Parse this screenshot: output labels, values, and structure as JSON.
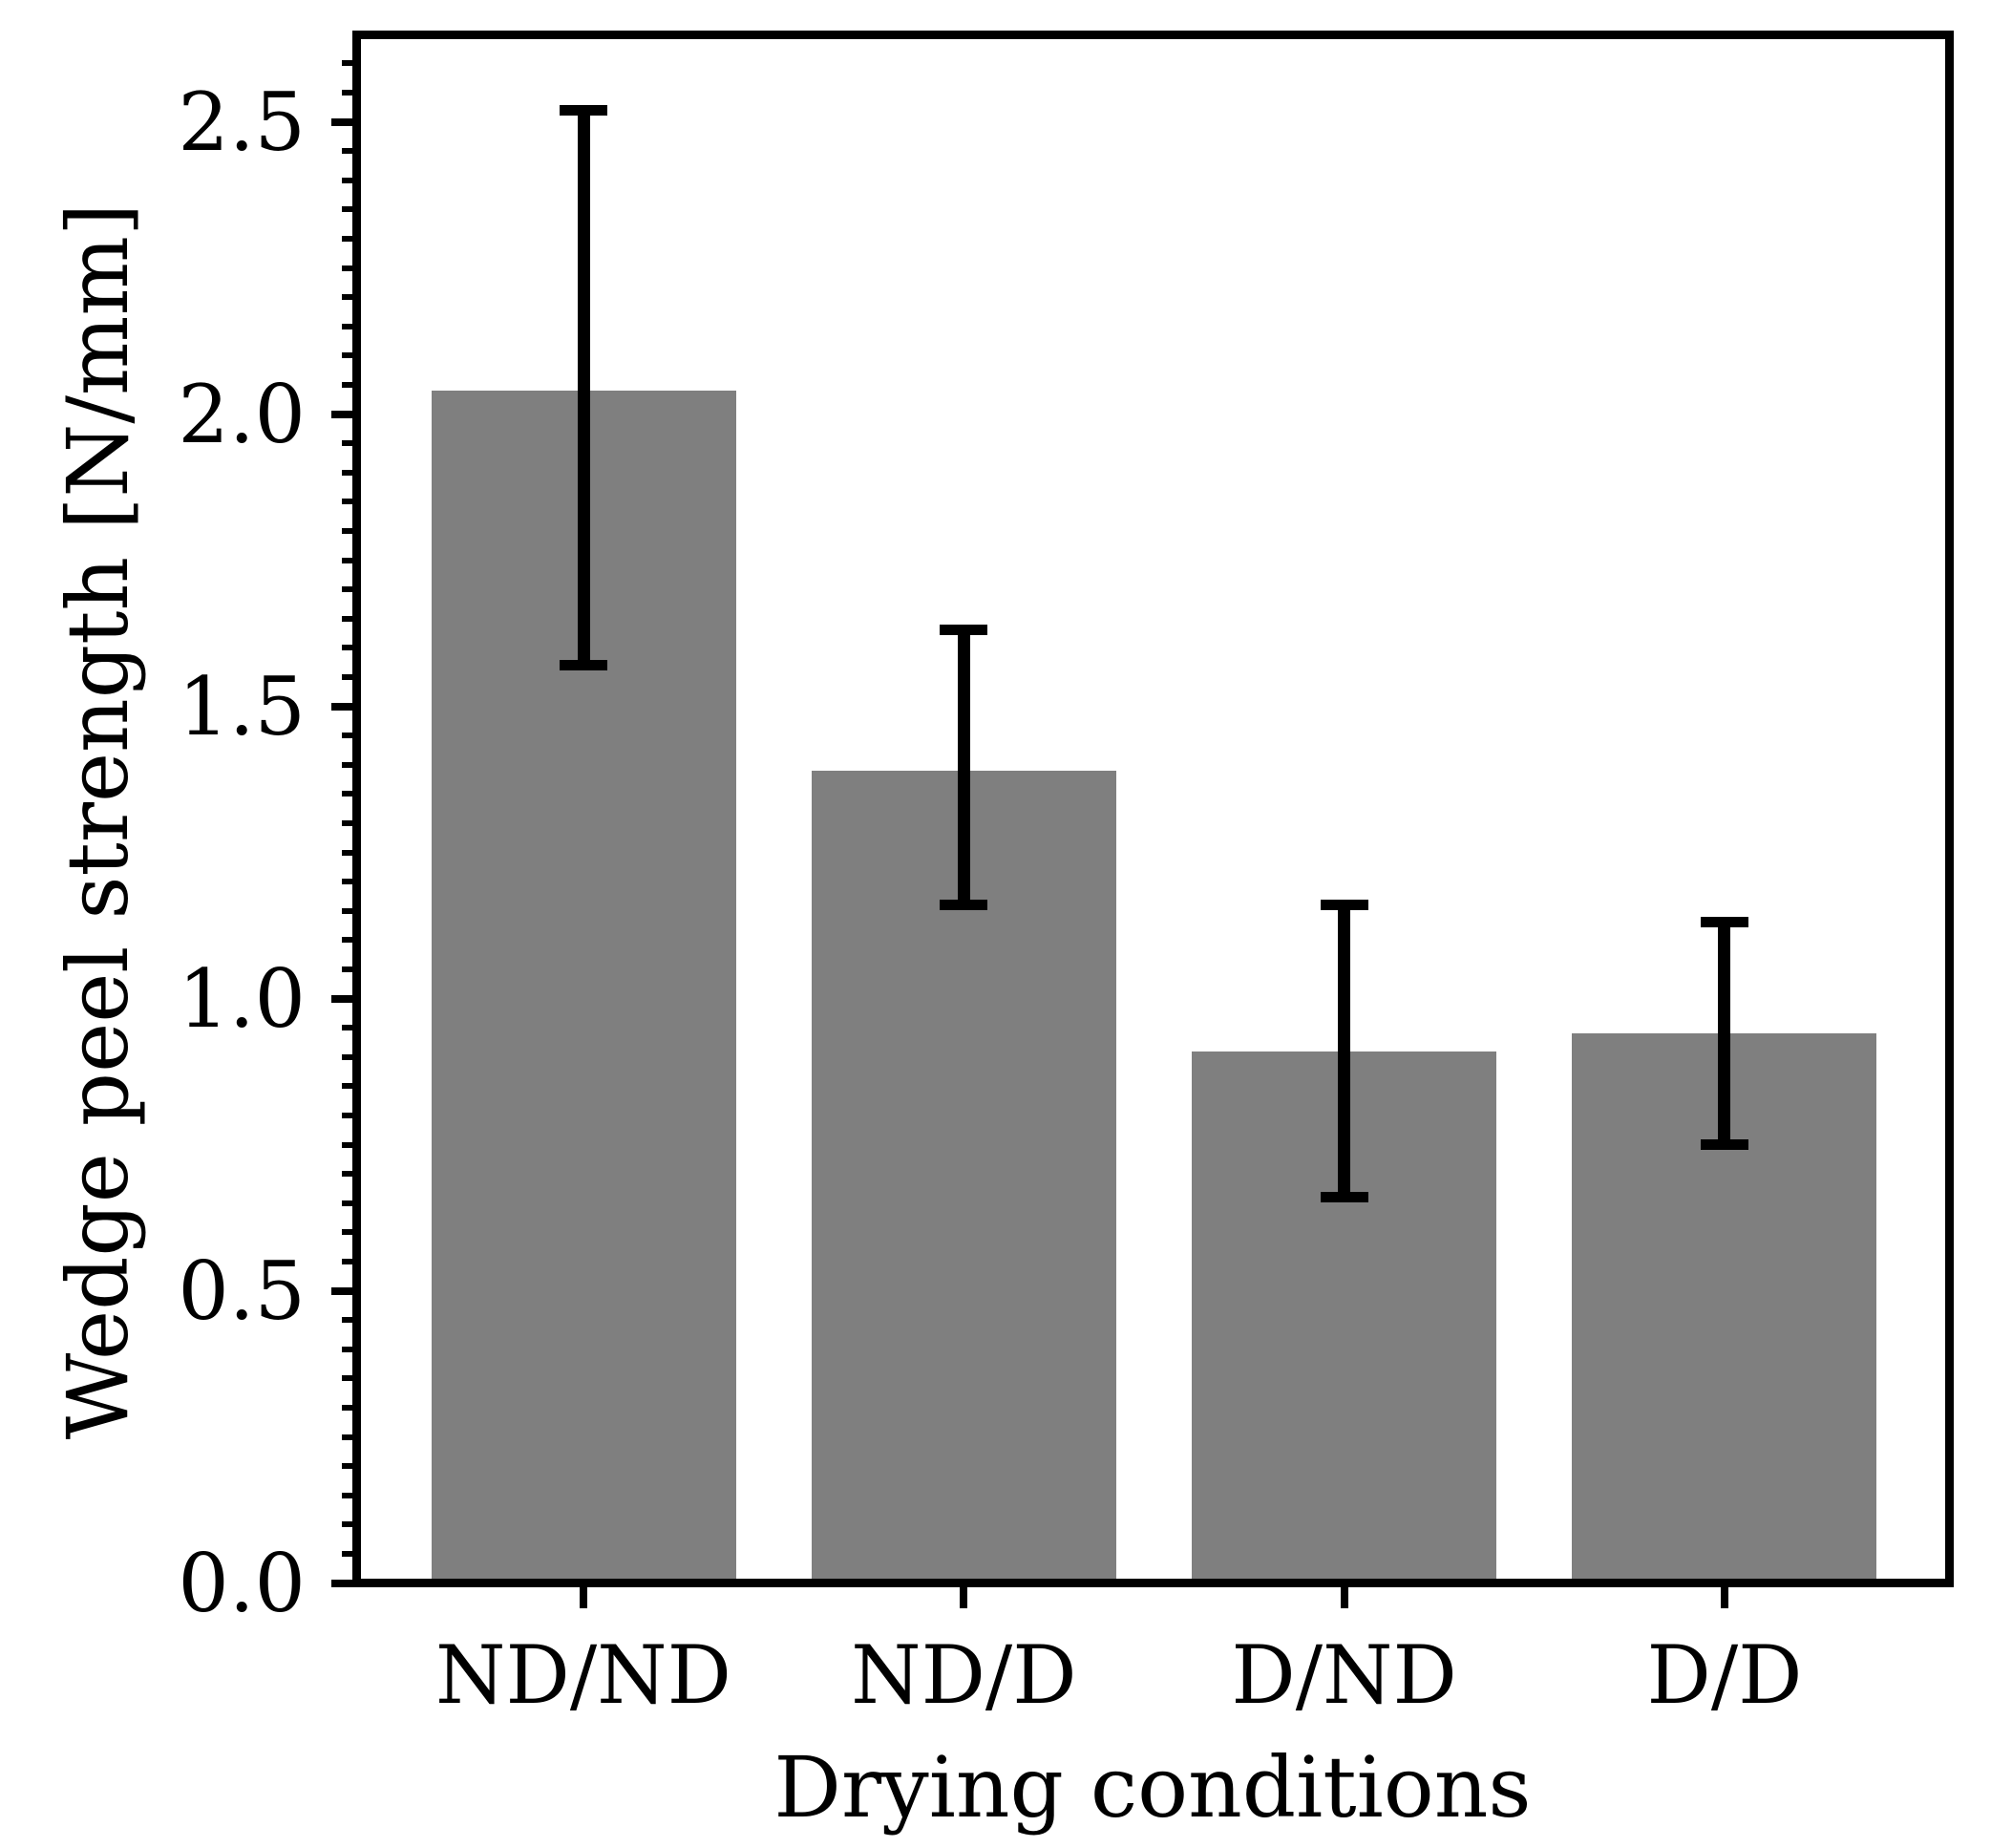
{
  "figure": {
    "background_color": "#ffffff",
    "frame_color": "#000000",
    "text_color": "#000000"
  },
  "chart_data": {
    "type": "bar",
    "title": "",
    "xlabel": "Drying conditions",
    "ylabel": "Wedge peel strength [N/mm]",
    "categories": [
      "ND/ND",
      "ND/D",
      "D/ND",
      "D/D"
    ],
    "values": [
      2.04,
      1.39,
      0.91,
      0.94
    ],
    "errors": [
      0.48,
      0.24,
      0.25,
      0.19
    ],
    "error_low": [
      1.57,
      1.16,
      0.66,
      0.75
    ],
    "error_high": [
      2.52,
      1.63,
      1.16,
      1.13
    ],
    "ylim": [
      0,
      2.65
    ],
    "yticks": [
      0.0,
      0.5,
      1.0,
      1.5,
      2.0,
      2.5
    ],
    "ytick_labels": [
      "0.0",
      "0.5",
      "1.0",
      "1.5",
      "2.0",
      "2.5"
    ],
    "minor_tick_interval": 0.05,
    "bar_color": "#7f7f7f",
    "error_bar_color": "#000000",
    "grid": false,
    "legend": null
  }
}
